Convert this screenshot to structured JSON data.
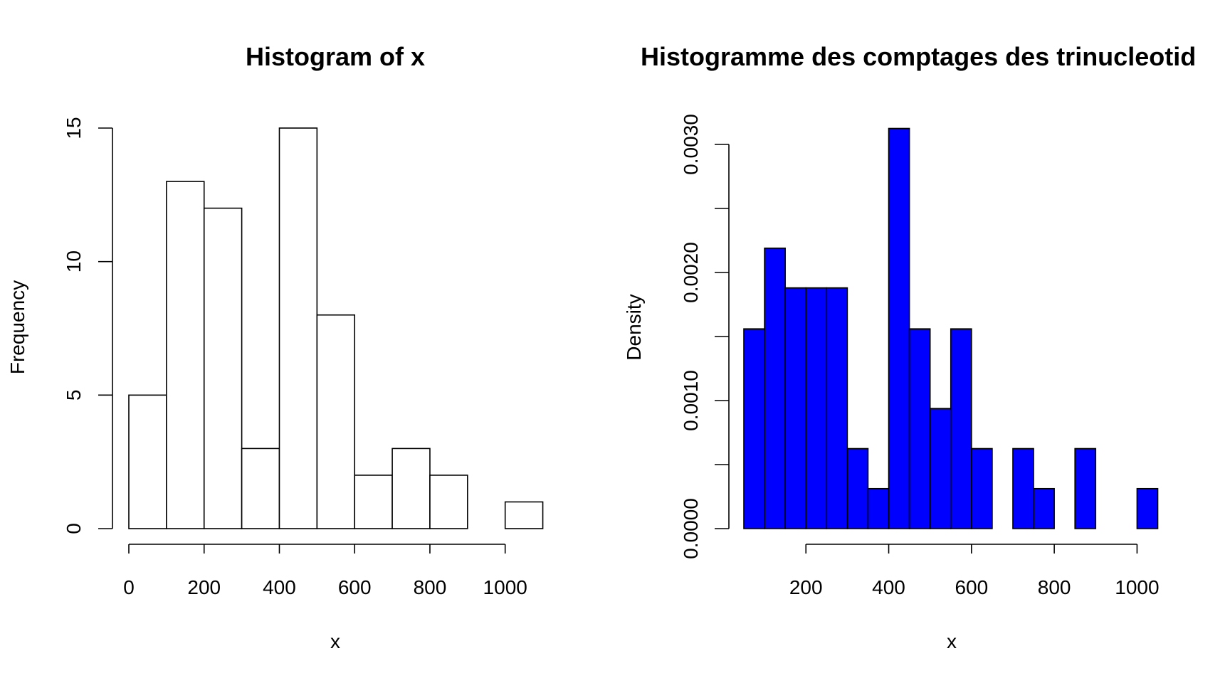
{
  "chart_data": [
    {
      "type": "bar",
      "title": "Histogram of x",
      "xlabel": "x",
      "ylabel": "Frequency",
      "bin_edges": [
        0,
        100,
        200,
        300,
        400,
        500,
        600,
        700,
        800,
        900,
        1000,
        1100
      ],
      "values": [
        5,
        13,
        12,
        3,
        15,
        8,
        2,
        3,
        2,
        0,
        1
      ],
      "xticks": [
        0,
        200,
        400,
        600,
        800,
        1000
      ],
      "yticks": [
        0,
        5,
        10,
        15
      ],
      "ylim": [
        0,
        15
      ],
      "fill_color": "#ffffff",
      "stroke_color": "#000000"
    },
    {
      "type": "bar",
      "title": "Histogramme des comptages des trinucleotid",
      "xlabel": "x",
      "ylabel": "Density",
      "bin_edges": [
        50,
        100,
        150,
        200,
        250,
        300,
        350,
        400,
        450,
        500,
        550,
        600,
        650,
        700,
        750,
        800,
        850,
        900,
        950,
        1000,
        1050
      ],
      "values": [
        0.00156,
        0.00219,
        0.00188,
        0.00188,
        0.00188,
        0.000625,
        0.0003125,
        0.003125,
        0.00156,
        0.000938,
        0.00156,
        0.000625,
        0,
        0.000625,
        0.0003125,
        0,
        0.000625,
        0,
        0,
        0.0003125
      ],
      "xticks": [
        200,
        400,
        600,
        800,
        1000
      ],
      "yticks": [
        "0.0000",
        "0.0010",
        "0.0020",
        "0.0030"
      ],
      "yticks_minor": [
        0.0005,
        0.0015,
        0.0025
      ],
      "ylim": [
        0,
        0.003
      ],
      "fill_color": "#0000ff",
      "stroke_color": "#000000"
    }
  ]
}
